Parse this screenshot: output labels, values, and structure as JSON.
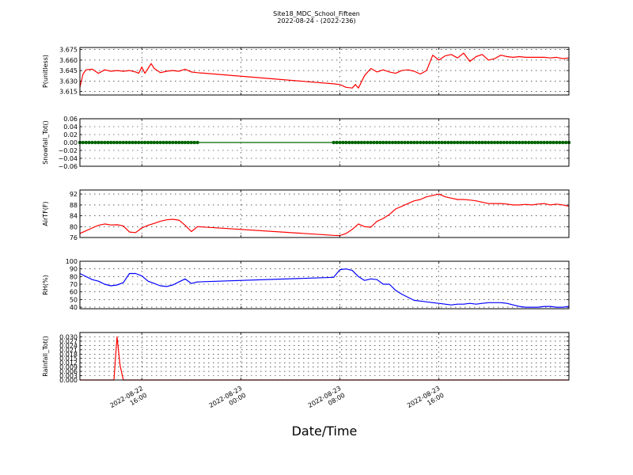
{
  "figure": {
    "title_line1": "Site18_MDC_School_Fifteen",
    "title_line2": "2022-08-24 - (2022-236)",
    "xlabel": "Date/Time"
  },
  "chart_data": {
    "type": "line",
    "x_range": [
      "2022-08-22 11:00",
      "2022-08-24 02:30"
    ],
    "x_ticks": [
      {
        "date": "2022-08-22",
        "time": "16:00",
        "at": "2022-08-22 16:00"
      },
      {
        "date": "2022-08-23",
        "time": "00:00",
        "at": "2022-08-23 00:00"
      },
      {
        "date": "2022-08-23",
        "time": "08:00",
        "at": "2022-08-23 08:00"
      },
      {
        "date": "2022-08-23",
        "time": "16:00",
        "at": "2022-08-23 16:00"
      }
    ],
    "grid": true,
    "panels": [
      {
        "ylabel": "P(unitless)",
        "color": "#ff0000",
        "ylim": [
          3.61,
          3.678
        ],
        "yticks": [
          3.615,
          3.63,
          3.645,
          3.66,
          3.675
        ],
        "ytick_labels": [
          "3.615",
          "3.630",
          "3.645",
          "3.660",
          "3.675"
        ],
        "marker": "none",
        "x": [
          "2022-08-22 11:00",
          "2022-08-22 11:15",
          "2022-08-22 11:30",
          "2022-08-22 12:00",
          "2022-08-22 12:30",
          "2022-08-22 13:00",
          "2022-08-22 13:30",
          "2022-08-22 14:00",
          "2022-08-22 14:30",
          "2022-08-22 15:00",
          "2022-08-22 15:30",
          "2022-08-22 15:45",
          "2022-08-22 16:00",
          "2022-08-22 16:15",
          "2022-08-22 16:30",
          "2022-08-22 16:45",
          "2022-08-22 17:00",
          "2022-08-22 17:30",
          "2022-08-22 18:00",
          "2022-08-22 18:30",
          "2022-08-22 19:00",
          "2022-08-22 19:30",
          "2022-08-22 20:00",
          "2022-08-22 20:30",
          "2022-08-23 07:30",
          "2022-08-23 08:00",
          "2022-08-23 08:30",
          "2022-08-23 09:00",
          "2022-08-23 09:15",
          "2022-08-23 09:30",
          "2022-08-23 10:00",
          "2022-08-23 10:30",
          "2022-08-23 11:00",
          "2022-08-23 11:30",
          "2022-08-23 12:00",
          "2022-08-23 12:30",
          "2022-08-23 13:00",
          "2022-08-23 13:30",
          "2022-08-23 14:00",
          "2022-08-23 14:30",
          "2022-08-23 15:00",
          "2022-08-23 15:30",
          "2022-08-23 16:00",
          "2022-08-23 16:30",
          "2022-08-23 17:00",
          "2022-08-23 17:30",
          "2022-08-23 18:00",
          "2022-08-23 18:30",
          "2022-08-23 19:00",
          "2022-08-23 19:30",
          "2022-08-23 20:00",
          "2022-08-23 20:30",
          "2022-08-23 21:00",
          "2022-08-23 21:30",
          "2022-08-23 22:00",
          "2022-08-23 22:30",
          "2022-08-23 23:00",
          "2022-08-23 23:30",
          "2022-08-24 00:00",
          "2022-08-24 00:30",
          "2022-08-24 01:00",
          "2022-08-24 01:30",
          "2022-08-24 02:00",
          "2022-08-24 02:30"
        ],
        "y": [
          3.621,
          3.64,
          3.646,
          3.647,
          3.641,
          3.646,
          3.644,
          3.645,
          3.644,
          3.645,
          3.643,
          3.641,
          3.65,
          3.641,
          3.648,
          3.655,
          3.648,
          3.642,
          3.644,
          3.645,
          3.644,
          3.647,
          3.643,
          3.642,
          3.626,
          3.625,
          3.621,
          3.62,
          3.625,
          3.62,
          3.638,
          3.648,
          3.643,
          3.646,
          3.643,
          3.641,
          3.645,
          3.646,
          3.644,
          3.64,
          3.645,
          3.667,
          3.66,
          3.666,
          3.668,
          3.663,
          3.67,
          3.658,
          3.665,
          3.668,
          3.66,
          3.662,
          3.667,
          3.665,
          3.664,
          3.665,
          3.664,
          3.664,
          3.664,
          3.664,
          3.663,
          3.664,
          3.662,
          3.663
        ]
      },
      {
        "ylabel": "Snowfall_Tot()",
        "color": "#006400",
        "ylim": [
          -0.06,
          0.06
        ],
        "yticks": [
          -0.06,
          -0.04,
          -0.02,
          0.0,
          0.02,
          0.04,
          0.06
        ],
        "ytick_labels": [
          "−0.06",
          "−0.04",
          "−0.02",
          "0.00",
          "0.02",
          "0.04",
          "0.06"
        ],
        "marker": "circle",
        "marker_ranges": [
          [
            "2022-08-22 11:00",
            "2022-08-22 20:30"
          ],
          [
            "2022-08-23 07:30",
            "2022-08-24 02:30"
          ]
        ],
        "x": [
          "2022-08-22 11:00",
          "2022-08-24 02:30"
        ],
        "y": [
          0.0,
          0.0
        ]
      },
      {
        "ylabel": "AirTF(F)",
        "color": "#ff0000",
        "ylim": [
          76,
          93.5
        ],
        "yticks": [
          76,
          80,
          84,
          88,
          92
        ],
        "ytick_labels": [
          "76",
          "80",
          "84",
          "88",
          "92"
        ],
        "marker": "none",
        "x": [
          "2022-08-22 11:00",
          "2022-08-22 11:30",
          "2022-08-22 12:00",
          "2022-08-22 12:30",
          "2022-08-22 13:00",
          "2022-08-22 13:30",
          "2022-08-22 14:00",
          "2022-08-22 14:30",
          "2022-08-22 15:00",
          "2022-08-22 15:30",
          "2022-08-22 16:00",
          "2022-08-22 16:30",
          "2022-08-22 17:00",
          "2022-08-22 17:30",
          "2022-08-22 18:00",
          "2022-08-22 18:30",
          "2022-08-22 19:00",
          "2022-08-22 19:30",
          "2022-08-22 20:00",
          "2022-08-22 20:30",
          "2022-08-23 07:30",
          "2022-08-23 08:00",
          "2022-08-23 08:30",
          "2022-08-23 09:00",
          "2022-08-23 09:30",
          "2022-08-23 10:00",
          "2022-08-23 10:30",
          "2022-08-23 11:00",
          "2022-08-23 11:30",
          "2022-08-23 12:00",
          "2022-08-23 12:30",
          "2022-08-23 13:00",
          "2022-08-23 13:30",
          "2022-08-23 14:00",
          "2022-08-23 14:30",
          "2022-08-23 15:00",
          "2022-08-23 15:30",
          "2022-08-23 16:00",
          "2022-08-23 16:30",
          "2022-08-23 17:00",
          "2022-08-23 17:30",
          "2022-08-23 18:00",
          "2022-08-23 18:30",
          "2022-08-23 19:00",
          "2022-08-23 19:30",
          "2022-08-23 20:00",
          "2022-08-23 20:30",
          "2022-08-23 21:00",
          "2022-08-23 21:30",
          "2022-08-23 22:00",
          "2022-08-23 22:30",
          "2022-08-23 23:00",
          "2022-08-23 23:30",
          "2022-08-24 00:00",
          "2022-08-24 00:30",
          "2022-08-24 01:00",
          "2022-08-24 01:30",
          "2022-08-24 02:00",
          "2022-08-24 02:30"
        ],
        "y": [
          77.5,
          78.5,
          79.5,
          80.5,
          81.0,
          80.6,
          80.7,
          80.3,
          78.0,
          77.8,
          79.5,
          80.5,
          81.2,
          82.0,
          82.5,
          82.7,
          82.4,
          80.5,
          78.2,
          80.0,
          76.8,
          76.7,
          77.5,
          79.0,
          81.0,
          80.0,
          79.8,
          82.0,
          83.0,
          84.5,
          86.5,
          87.5,
          88.5,
          89.5,
          90.0,
          91.0,
          91.5,
          92.0,
          91.0,
          90.5,
          90.0,
          90.0,
          89.8,
          89.5,
          89.0,
          88.5,
          88.5,
          88.5,
          88.3,
          88.0,
          88.0,
          88.2,
          88.0,
          88.3,
          88.5,
          88.0,
          88.3,
          88.0,
          87.5
        ]
      },
      {
        "ylabel": "RH(%)",
        "color": "#0000ff",
        "ylim": [
          38,
          100
        ],
        "yticks": [
          40,
          50,
          60,
          70,
          80,
          90,
          100
        ],
        "ytick_labels": [
          "40",
          "50",
          "60",
          "70",
          "80",
          "90",
          "100"
        ],
        "marker": "none",
        "x": [
          "2022-08-22 11:00",
          "2022-08-22 11:30",
          "2022-08-22 12:00",
          "2022-08-22 12:30",
          "2022-08-22 13:00",
          "2022-08-22 13:30",
          "2022-08-22 14:00",
          "2022-08-22 14:30",
          "2022-08-22 15:00",
          "2022-08-22 15:30",
          "2022-08-22 16:00",
          "2022-08-22 16:30",
          "2022-08-22 17:00",
          "2022-08-22 17:30",
          "2022-08-22 18:00",
          "2022-08-22 18:30",
          "2022-08-22 19:00",
          "2022-08-22 19:30",
          "2022-08-22 20:00",
          "2022-08-22 20:30",
          "2022-08-23 07:30",
          "2022-08-23 08:00",
          "2022-08-23 08:30",
          "2022-08-23 09:00",
          "2022-08-23 09:30",
          "2022-08-23 10:00",
          "2022-08-23 10:30",
          "2022-08-23 11:00",
          "2022-08-23 11:30",
          "2022-08-23 12:00",
          "2022-08-23 12:30",
          "2022-08-23 13:00",
          "2022-08-23 13:30",
          "2022-08-23 14:00",
          "2022-08-23 14:30",
          "2022-08-23 15:00",
          "2022-08-23 15:30",
          "2022-08-23 16:00",
          "2022-08-23 16:30",
          "2022-08-23 17:00",
          "2022-08-23 17:30",
          "2022-08-23 18:00",
          "2022-08-23 18:30",
          "2022-08-23 19:00",
          "2022-08-23 19:30",
          "2022-08-23 20:00",
          "2022-08-23 20:30",
          "2022-08-23 21:00",
          "2022-08-23 21:30",
          "2022-08-23 22:00",
          "2022-08-23 22:30",
          "2022-08-23 23:00",
          "2022-08-23 23:30",
          "2022-08-24 00:00",
          "2022-08-24 00:30",
          "2022-08-24 01:00",
          "2022-08-24 01:30",
          "2022-08-24 02:00",
          "2022-08-24 02:30"
        ],
        "y": [
          84,
          80,
          76,
          74,
          70,
          68,
          69,
          72,
          84,
          84,
          81,
          74,
          71,
          68,
          67,
          69,
          73,
          77,
          71,
          73,
          79,
          89,
          90,
          88,
          80,
          75,
          77,
          76,
          70,
          70,
          62,
          57,
          53,
          49,
          48,
          47,
          46,
          45,
          44,
          43,
          44,
          44,
          45,
          44,
          45,
          46,
          46,
          46,
          45,
          43,
          41,
          40,
          40,
          40,
          41,
          41,
          40,
          40,
          41
        ]
      },
      {
        "ylabel": "Rainfall_Tot()",
        "color": "#ff0000",
        "ylim": [
          0.0,
          0.033
        ],
        "yticks": [
          0.0,
          0.003,
          0.006,
          0.009,
          0.012,
          0.015,
          0.018,
          0.021,
          0.024,
          0.027,
          0.03
        ],
        "ytick_labels": [
          "0.000",
          "0.003",
          "0.006",
          "0.009",
          "0.012",
          "0.015",
          "0.018",
          "0.021",
          "0.024",
          "0.027",
          "0.030"
        ],
        "marker": "none",
        "x": [
          "2022-08-22 11:00",
          "2022-08-22 13:45",
          "2022-08-22 14:00",
          "2022-08-22 14:15",
          "2022-08-22 14:30",
          "2022-08-24 02:30"
        ],
        "y": [
          0.0,
          0.0,
          0.03,
          0.01,
          0.0,
          0.0
        ]
      }
    ]
  }
}
